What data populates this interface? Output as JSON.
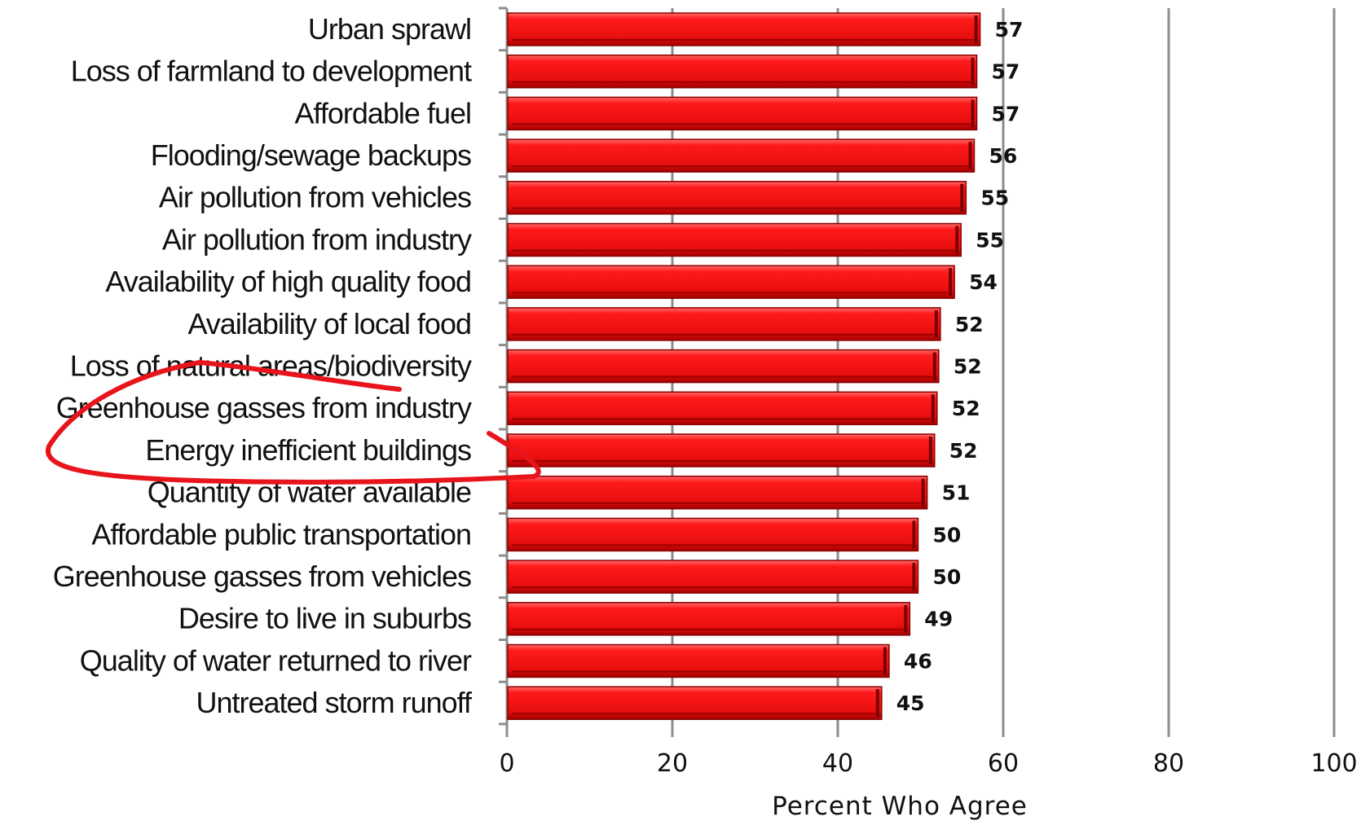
{
  "chart_data": {
    "type": "bar",
    "orientation": "horizontal",
    "categories": [
      "Urban sprawl",
      "Loss of farmland to development",
      "Affordable fuel",
      "Flooding/sewage backups",
      "Air pollution from vehicles",
      "Air pollution from industry",
      "Availability of high quality food",
      "Availability of local food",
      "Loss of natural areas/biodiversity",
      "Greenhouse gasses from industry",
      "Energy inefficient buildings",
      "Quantity of water available",
      "Affordable public transportation",
      "Greenhouse gasses from vehicles",
      "Desire to live in suburbs",
      "Quality of water returned to river",
      "Untreated storm runoff"
    ],
    "values": [
      57.2,
      56.8,
      56.8,
      56.5,
      55.5,
      54.9,
      54.1,
      52.4,
      52.2,
      52.0,
      51.7,
      50.8,
      49.7,
      49.7,
      48.7,
      46.2,
      45.3
    ],
    "value_labels": [
      "57",
      "57",
      "57",
      "56",
      "55",
      "55",
      "54",
      "52",
      "52",
      "52",
      "52",
      "51",
      "50",
      "50",
      "49",
      "46",
      "45"
    ],
    "xlabel": "Percent Who Agree",
    "ylabel": "",
    "xlim": [
      0,
      100
    ],
    "xticks": [
      "0",
      "20",
      "40",
      "60",
      "80",
      "100"
    ],
    "grid": "vertical",
    "bar_color": "#ee1c1c",
    "highlight_annotation": {
      "type": "hand-drawn ellipse",
      "target_category": "Energy inefficient buildings",
      "color": "#e8141c"
    }
  }
}
